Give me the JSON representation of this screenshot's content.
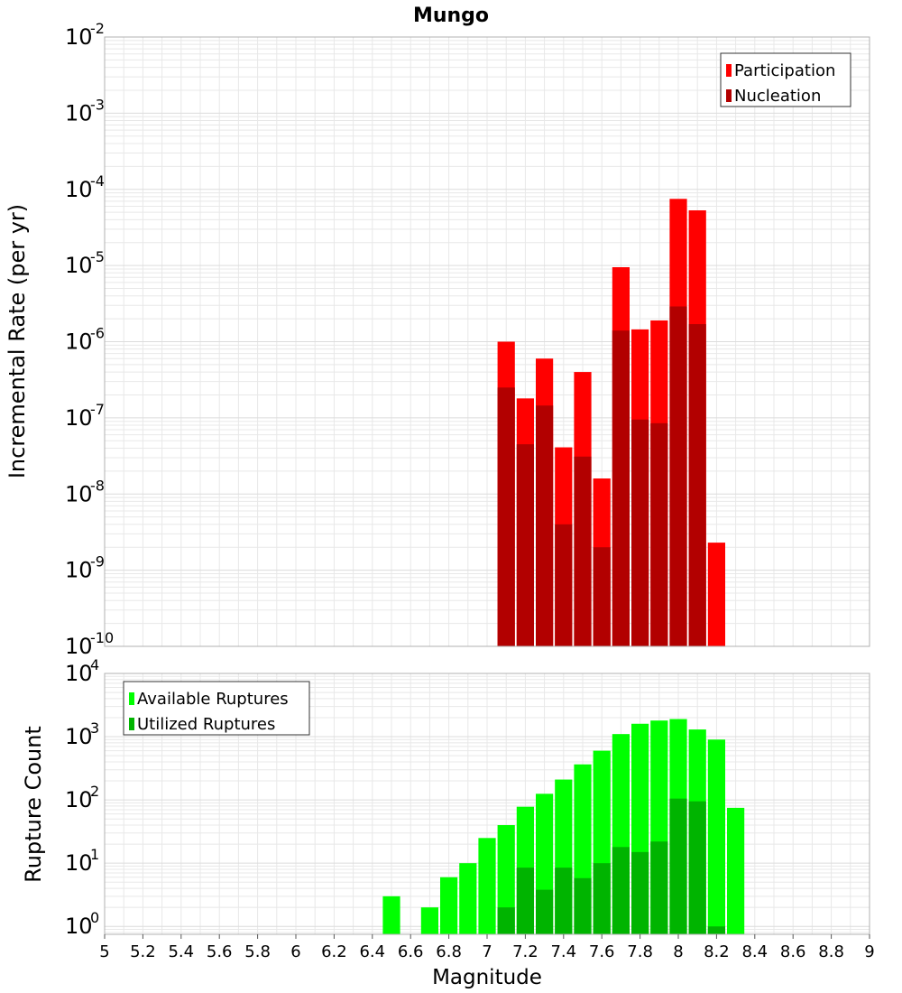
{
  "title": "Mungo",
  "colors": {
    "participation": "#ff0000",
    "nucleation": "#b20000",
    "available": "#00ff00",
    "utilized": "#00b400",
    "grid": "#e8e8e8",
    "plot_border": "#b0b0b0"
  },
  "chart_data": [
    {
      "type": "bar",
      "title": "Mungo",
      "xlabel": "",
      "ylabel": "Incremental Rate (per yr)",
      "yscale": "log",
      "ylim": [
        1e-10,
        0.01
      ],
      "y_tick_exponents": [
        "-10",
        "-9",
        "-8",
        "-7",
        "-6",
        "-5",
        "-4",
        "-3",
        "-2"
      ],
      "xlim": [
        5,
        9
      ],
      "grid": true,
      "legend_position": "top-right",
      "x": [
        7.1,
        7.2,
        7.3,
        7.4,
        7.5,
        7.6,
        7.7,
        7.8,
        7.9,
        8.0,
        8.1,
        8.2
      ],
      "series": [
        {
          "name": "Participation",
          "values": [
            1e-06,
            1.8e-07,
            6e-07,
            4.1e-08,
            4e-07,
            1.6e-08,
            9.5e-06,
            1.45e-06,
            1.9e-06,
            7.5e-05,
            5.3e-05,
            2.3e-09
          ]
        },
        {
          "name": "Nucleation",
          "values": [
            2.5e-07,
            4.5e-08,
            1.45e-07,
            4e-09,
            3.1e-08,
            2e-09,
            1.4e-06,
            9.5e-08,
            8.5e-08,
            2.9e-06,
            1.7e-06,
            null
          ]
        }
      ]
    },
    {
      "type": "bar",
      "xlabel": "Magnitude",
      "ylabel": "Rupture Count",
      "yscale": "log",
      "ylim": [
        0.75,
        10000
      ],
      "y_tick_exponents": [
        "0",
        "1",
        "2",
        "3",
        "4"
      ],
      "xlim": [
        5,
        9
      ],
      "x_ticks": [
        "5",
        "5.2",
        "5.4",
        "5.6",
        "5.8",
        "6",
        "6.2",
        "6.4",
        "6.6",
        "6.8",
        "7",
        "7.2",
        "7.4",
        "7.6",
        "7.8",
        "8",
        "8.2",
        "8.4",
        "8.6",
        "8.8",
        "9"
      ],
      "grid": true,
      "legend_position": "top-left",
      "x": [
        6.5,
        6.7,
        6.8,
        6.9,
        7.0,
        7.1,
        7.2,
        7.3,
        7.4,
        7.5,
        7.6,
        7.7,
        7.8,
        7.9,
        8.0,
        8.1,
        8.2,
        8.3
      ],
      "series": [
        {
          "name": "Available Ruptures",
          "values": [
            3,
            2,
            6,
            10,
            25,
            40,
            78,
            125,
            210,
            365,
            600,
            1100,
            1600,
            1800,
            1900,
            1300,
            900,
            75
          ]
        },
        {
          "name": "Utilized Ruptures",
          "values": [
            null,
            null,
            null,
            null,
            null,
            2,
            8.5,
            3.8,
            8.5,
            5.8,
            10,
            18,
            15,
            22,
            105,
            95,
            1,
            null
          ]
        }
      ]
    }
  ]
}
